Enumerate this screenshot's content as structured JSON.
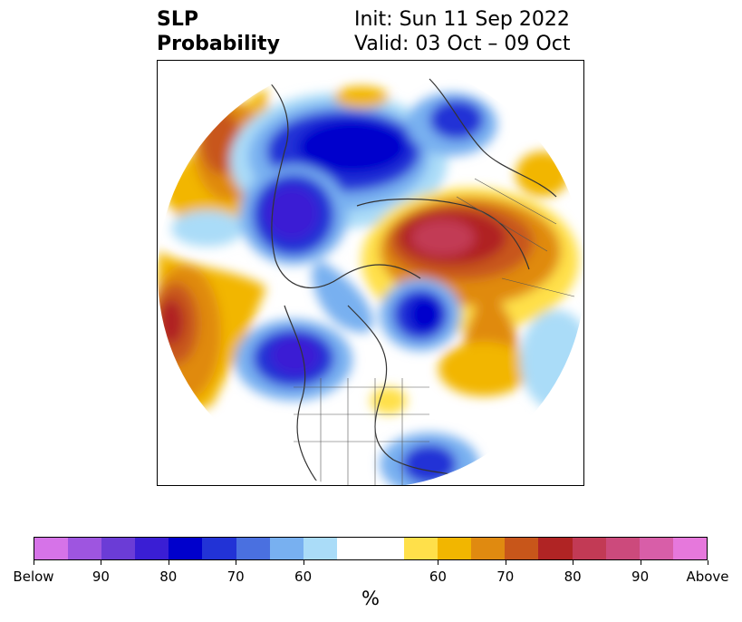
{
  "title": {
    "line1": "SLP",
    "line2": "Probability",
    "init": "Init: Sun 11 Sep 2022",
    "valid": "Valid: 03 Oct – 09 Oct"
  },
  "colorbar": {
    "unit": "%",
    "colors": [
      "#d673e8",
      "#9e55e0",
      "#6b3cd6",
      "#3a1ed4",
      "#0000cc",
      "#2233d6",
      "#4a70e0",
      "#78b0f0",
      "#aadcf8",
      "#ffffff",
      "#ffffff",
      "#ffe04a",
      "#f2b600",
      "#e08a10",
      "#c8561a",
      "#b02424",
      "#c23a55",
      "#cc4a7c",
      "#d85ea8",
      "#e678dc"
    ],
    "tick_labels": [
      "Below",
      "90",
      "80",
      "70",
      "60",
      "60",
      "70",
      "80",
      "90",
      "Above"
    ]
  },
  "map": {
    "projection": "north polar stereographic",
    "features": [
      "coastlines",
      "country borders",
      "US state borders"
    ]
  }
}
